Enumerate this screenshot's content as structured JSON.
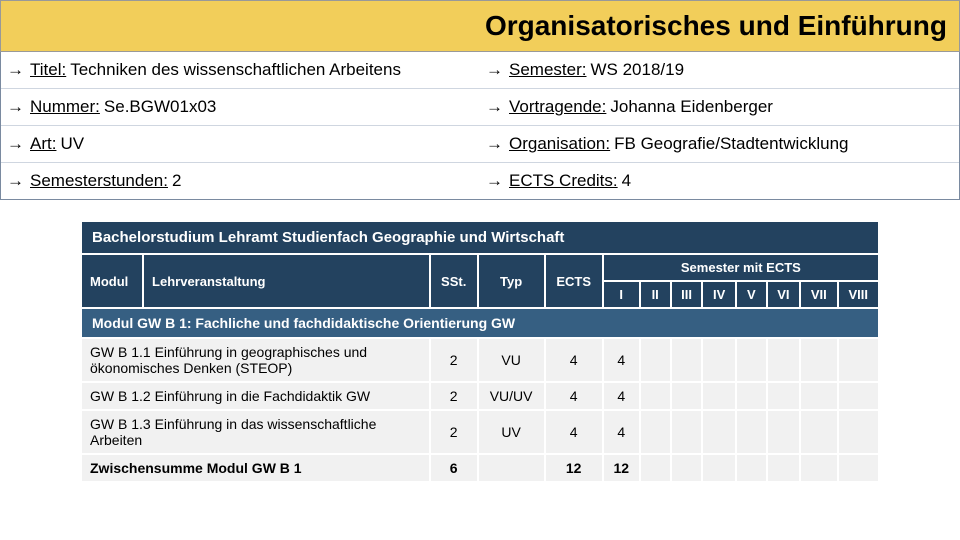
{
  "header": {
    "title": "Organisatorisches und Einführung"
  },
  "info": {
    "arrow": "→",
    "rows": [
      {
        "leftLabel": "Titel:",
        "leftValue": "Techniken des wissenschaftlichen Arbeitens",
        "rightLabel": "Semester:",
        "rightValue": "WS 2018/19"
      },
      {
        "leftLabel": "Nummer:",
        "leftValue": "Se.BGW01x03",
        "rightLabel": "Vortragende:",
        "rightValue": "Johanna Eidenberger"
      },
      {
        "leftLabel": "Art:",
        "leftValue": "UV",
        "rightLabel": "Organisation:",
        "rightValue": "FB Geografie/Stadtentwicklung"
      },
      {
        "leftLabel": "Semesterstunden:",
        "leftValue": "2",
        "rightLabel": "ECTS Credits:",
        "rightValue": "4"
      }
    ]
  },
  "curriculum": {
    "program_title": "Bachelorstudium Lehramt Studienfach Geographie und Wirtschaft",
    "header": {
      "modul": "Modul",
      "lv": "Lehrveranstaltung",
      "sst": "SSt.",
      "typ": "Typ",
      "ects": "ECTS",
      "sem_header": "Semester mit ECTS",
      "sems": [
        "I",
        "II",
        "III",
        "IV",
        "V",
        "VI",
        "VII",
        "VIII"
      ]
    },
    "section": "Modul GW B 1: Fachliche und fachdidaktische Orientierung GW",
    "rows": [
      {
        "name": "GW B 1.1 Einführung in geographisches und ökonomisches Denken (STEOP)",
        "sst": "2",
        "typ": "VU",
        "ects": "4",
        "s": [
          "4",
          "",
          "",
          "",
          "",
          "",
          "",
          ""
        ]
      },
      {
        "name": "GW B 1.2 Einführung in die Fachdidaktik GW",
        "sst": "2",
        "typ": "VU/UV",
        "ects": "4",
        "s": [
          "4",
          "",
          "",
          "",
          "",
          "",
          "",
          ""
        ]
      },
      {
        "name": "GW B 1.3 Einführung in das wissenschaftliche Arbeiten",
        "sst": "2",
        "typ": "UV",
        "ects": "4",
        "s": [
          "4",
          "",
          "",
          "",
          "",
          "",
          "",
          ""
        ]
      }
    ],
    "sum": {
      "label": "Zwischensumme Modul GW B 1",
      "sst": "6",
      "typ": "",
      "ects": "12",
      "s": [
        "12",
        "",
        "",
        "",
        "",
        "",
        "",
        ""
      ]
    }
  },
  "style": {
    "colors": {
      "header_bg": "#f2ce5a",
      "dark_blue": "#23425f",
      "mid_blue": "#365f82",
      "row_bg": "#f1f1f1"
    }
  }
}
